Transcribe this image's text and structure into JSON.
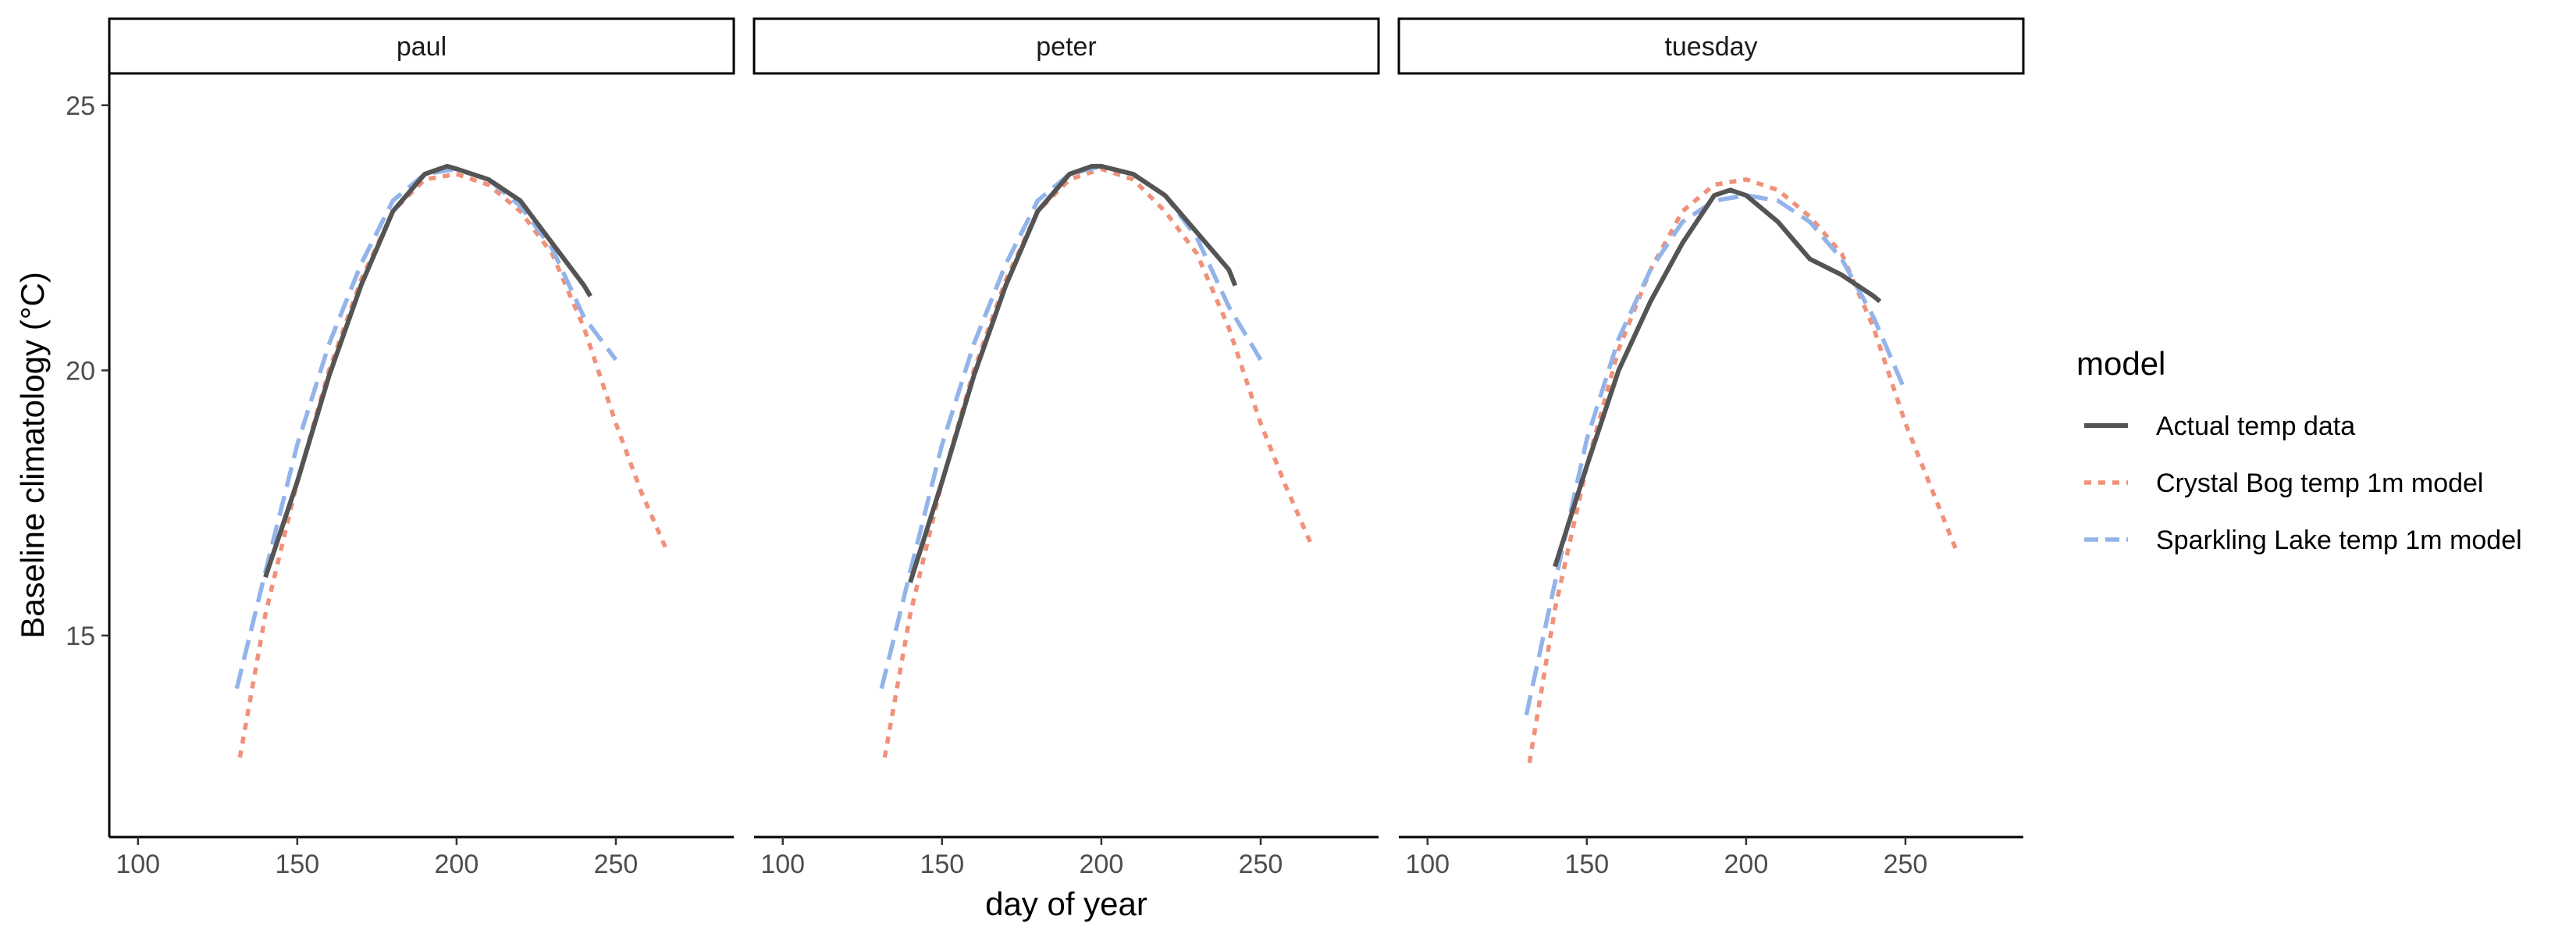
{
  "chart_data": {
    "type": "line",
    "facets": [
      "paul",
      "peter",
      "tuesday"
    ],
    "xlabel": "day of year",
    "ylabel": "Baseline climatology (°C)",
    "xlim": [
      91,
      287
    ],
    "ylim": [
      11.2,
      25.6
    ],
    "xticks": [
      100,
      150,
      200,
      250
    ],
    "yticks": [
      15,
      20,
      25
    ],
    "grid": false,
    "legend": {
      "title": "model",
      "position": "right",
      "entries": [
        "Actual temp data",
        "Crystal Bog temp 1m model",
        "Sparkling Lake temp 1m model"
      ]
    },
    "series_styles": [
      {
        "name": "Actual temp data",
        "color": "#545454",
        "dash": "solid"
      },
      {
        "name": "Crystal Bog temp 1m model",
        "color": "#F0917A",
        "dash": "dotted"
      },
      {
        "name": "Sparkling Lake temp 1m model",
        "color": "#92B4EA",
        "dash": "dashed"
      }
    ],
    "panels": [
      {
        "facet": "paul",
        "series": [
          {
            "name": "Crystal Bog temp 1m model",
            "x": [
              132,
              140,
              150,
              160,
              170,
              180,
              190,
              200,
              210,
              220,
              230,
              240,
              250,
              258,
              266
            ],
            "y": [
              12.7,
              15.4,
              17.9,
              20.0,
              21.7,
              23.0,
              23.6,
              23.7,
              23.5,
              23.0,
              22.2,
              20.8,
              19.0,
              17.7,
              16.6
            ]
          },
          {
            "name": "Sparkling Lake temp 1m model",
            "x": [
              131,
              140,
              150,
              160,
              170,
              180,
              190,
              200,
              210,
              220,
              230,
              240,
              250
            ],
            "y": [
              14.0,
              16.2,
              18.6,
              20.5,
              22.0,
              23.2,
              23.7,
              23.8,
              23.6,
              23.1,
              22.3,
              21.0,
              20.2
            ]
          },
          {
            "name": "Actual temp data",
            "x": [
              140,
              150,
              160,
              170,
              180,
              190,
              197,
              200,
              210,
              220,
              230,
              240,
              242
            ],
            "y": [
              16.1,
              17.9,
              19.9,
              21.6,
              23.0,
              23.7,
              23.85,
              23.8,
              23.6,
              23.2,
              22.4,
              21.6,
              21.4
            ]
          }
        ]
      },
      {
        "facet": "peter",
        "series": [
          {
            "name": "Crystal Bog temp 1m model",
            "x": [
              132,
              140,
              150,
              160,
              170,
              180,
              190,
              200,
              210,
              220,
              230,
              240,
              250,
              258,
              266
            ],
            "y": [
              12.7,
              15.4,
              17.9,
              20.0,
              21.7,
              23.0,
              23.6,
              23.8,
              23.6,
              23.0,
              22.2,
              20.8,
              19.0,
              17.8,
              16.7
            ]
          },
          {
            "name": "Sparkling Lake temp 1m model",
            "x": [
              131,
              140,
              150,
              160,
              170,
              180,
              190,
              200,
              210,
              220,
              230,
              240,
              250
            ],
            "y": [
              14.0,
              16.2,
              18.6,
              20.5,
              22.0,
              23.2,
              23.7,
              23.85,
              23.7,
              23.3,
              22.5,
              21.2,
              20.2
            ]
          },
          {
            "name": "Actual temp data",
            "x": [
              140,
              150,
              160,
              170,
              180,
              190,
              197,
              200,
              210,
              220,
              230,
              240,
              242
            ],
            "y": [
              16.0,
              17.9,
              19.9,
              21.6,
              23.0,
              23.7,
              23.85,
              23.85,
              23.7,
              23.3,
              22.6,
              21.9,
              21.6
            ]
          }
        ]
      },
      {
        "facet": "tuesday",
        "series": [
          {
            "name": "Crystal Bog temp 1m model",
            "x": [
              132,
              140,
              150,
              160,
              170,
              180,
              190,
              200,
              210,
              220,
              230,
              240,
              250,
              258,
              266
            ],
            "y": [
              12.6,
              15.5,
              18.2,
              20.4,
              21.9,
              23.0,
              23.5,
              23.6,
              23.4,
              22.9,
              22.2,
              20.8,
              19.0,
              17.8,
              16.6
            ]
          },
          {
            "name": "Sparkling Lake temp 1m model",
            "x": [
              131,
              140,
              150,
              160,
              170,
              180,
              190,
              200,
              210,
              220,
              230,
              240,
              250
            ],
            "y": [
              13.5,
              16.0,
              18.7,
              20.6,
              21.9,
              22.8,
              23.2,
              23.3,
              23.2,
              22.8,
              22.1,
              21.0,
              19.6
            ]
          },
          {
            "name": "Actual temp data",
            "x": [
              140,
              150,
              160,
              170,
              180,
              190,
              195,
              200,
              210,
              220,
              230,
              240,
              242
            ],
            "y": [
              16.3,
              18.2,
              20.0,
              21.3,
              22.4,
              23.3,
              23.4,
              23.3,
              22.8,
              22.1,
              21.8,
              21.4,
              21.3
            ]
          }
        ]
      }
    ]
  }
}
